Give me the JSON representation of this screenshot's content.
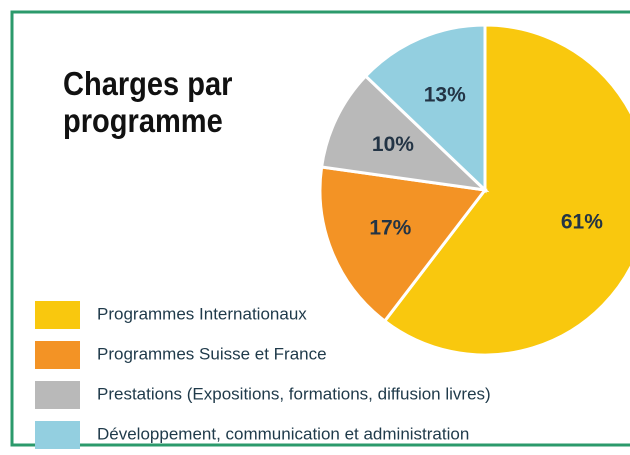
{
  "chart_data": {
    "type": "pie",
    "title": "Charges par programme",
    "categories": [
      "Programmes Internationaux",
      "Programmes Suisse et France",
      "Prestations (Expositions, formations, diffusion livres)",
      "Développement, communication et administration"
    ],
    "values": [
      61,
      17,
      10,
      13
    ],
    "value_labels": [
      "61%",
      "17%",
      "10%",
      "13%"
    ],
    "colors": [
      "#f9c80e",
      "#f39325",
      "#b9b9b9",
      "#93cfe0"
    ]
  }
}
